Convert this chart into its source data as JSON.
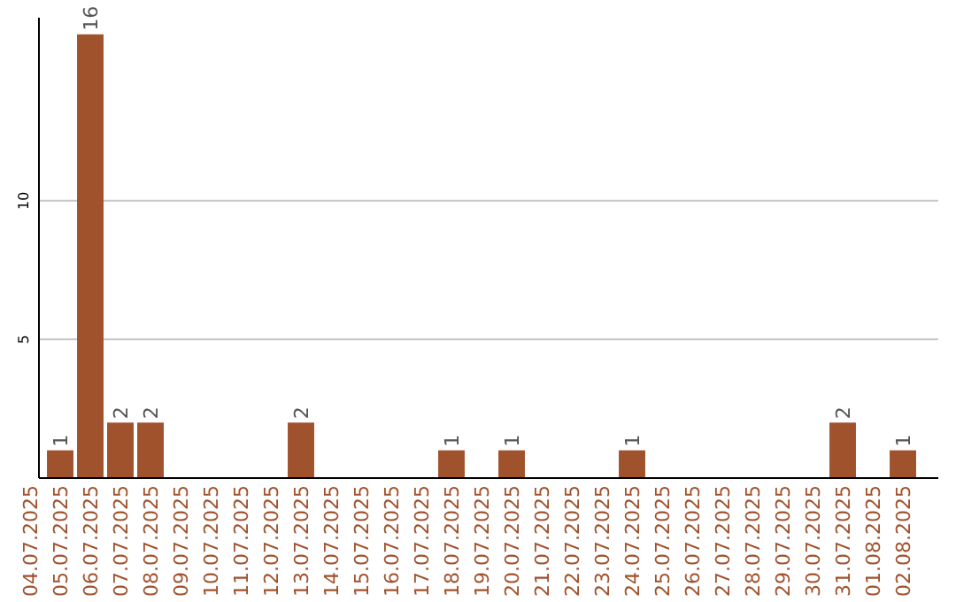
{
  "chart_data": {
    "type": "bar",
    "categories": [
      "04.07.2025",
      "05.07.2025",
      "06.07.2025",
      "07.07.2025",
      "08.07.2025",
      "09.07.2025",
      "10.07.2025",
      "11.07.2025",
      "12.07.2025",
      "13.07.2025",
      "14.07.2025",
      "15.07.2025",
      "16.07.2025",
      "17.07.2025",
      "18.07.2025",
      "19.07.2025",
      "20.07.2025",
      "21.07.2025",
      "22.07.2025",
      "23.07.2025",
      "24.07.2025",
      "25.07.2025",
      "26.07.2025",
      "27.07.2025",
      "28.07.2025",
      "29.07.2025",
      "30.07.2025",
      "31.07.2025",
      "01.08.2025",
      "02.08.2025"
    ],
    "values": [
      0,
      1,
      16,
      2,
      2,
      0,
      0,
      0,
      0,
      2,
      0,
      0,
      0,
      0,
      1,
      0,
      1,
      0,
      0,
      0,
      1,
      0,
      0,
      0,
      0,
      0,
      0,
      2,
      0,
      1
    ],
    "value_labels": [
      null,
      "1",
      "16",
      "2",
      "2",
      null,
      null,
      null,
      null,
      "2",
      null,
      null,
      null,
      null,
      "1",
      null,
      "1",
      null,
      null,
      null,
      "1",
      null,
      null,
      null,
      null,
      null,
      null,
      "2",
      null,
      "1"
    ],
    "color": "#a0522d",
    "ylim": [
      0,
      16.6
    ],
    "yticks": [
      5,
      10
    ],
    "grid": "y"
  }
}
